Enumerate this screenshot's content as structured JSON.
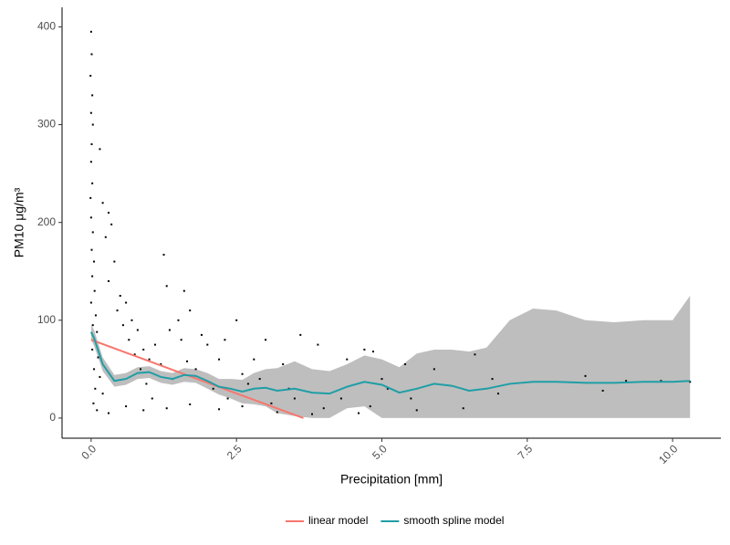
{
  "chart_data": {
    "type": "scatter",
    "x_label": "Precipitation [mm]",
    "y_label": "PM10 μg/m³",
    "xlim": [
      -0.5,
      10.83
    ],
    "ylim": [
      -20.6,
      420
    ],
    "xticks": [
      {
        "value": 0,
        "label": "0.0"
      },
      2.5,
      {
        "value": 5,
        "label": "5.0"
      },
      7.5,
      {
        "value": 10,
        "label": "10.0"
      }
    ],
    "yticks": [
      0,
      100,
      200,
      300,
      400
    ],
    "grid": false,
    "legend": "bottom",
    "points": {
      "color": "#000000",
      "x": [
        0,
        0.01,
        -0.01,
        0.02,
        0,
        0.03,
        0.01,
        0,
        0.02,
        -0.01,
        0,
        0.03,
        0.01,
        0.05,
        0.02,
        0.06,
        0,
        0.08,
        0.03,
        0.1,
        0.02,
        0.12,
        0.05,
        0.15,
        0.07,
        0.2,
        0.04,
        0.1,
        0.15,
        0.2,
        0.3,
        0.35,
        0.25,
        0.4,
        0.3,
        0.5,
        0.45,
        0.6,
        0.55,
        0.7,
        0.65,
        0.8,
        0.75,
        0.9,
        0.85,
        1.0,
        0.95,
        1.1,
        1.05,
        1.2,
        1.25,
        1.3,
        1.35,
        1.4,
        1.5,
        1.55,
        1.6,
        1.7,
        1.65,
        1.8,
        1.9,
        2.0,
        2.1,
        2.2,
        2.3,
        2.35,
        2.5,
        2.6,
        2.7,
        2.8,
        2.9,
        3.0,
        3.1,
        3.3,
        3.4,
        3.5,
        3.6,
        3.9,
        4.0,
        4.3,
        4.4,
        4.7,
        4.8,
        4.85,
        5.0,
        5.1,
        5.4,
        5.5,
        5.6,
        5.9,
        6.4,
        6.6,
        6.9,
        7.0,
        8.5,
        8.8,
        9.2,
        9.8,
        10.3,
        0.3,
        0.6,
        0.9,
        1.3,
        1.7,
        2.2,
        2.6,
        3.2,
        3.8,
        4.6
      ],
      "y": [
        395,
        372,
        350,
        330,
        312,
        300,
        280,
        262,
        240,
        225,
        205,
        190,
        172,
        160,
        145,
        130,
        118,
        105,
        95,
        88,
        70,
        62,
        50,
        42,
        30,
        25,
        15,
        8,
        275,
        220,
        210,
        198,
        185,
        160,
        140,
        125,
        110,
        118,
        95,
        100,
        80,
        90,
        65,
        70,
        50,
        60,
        35,
        75,
        20,
        55,
        167,
        135,
        90,
        40,
        100,
        80,
        130,
        110,
        58,
        50,
        85,
        75,
        30,
        60,
        80,
        20,
        100,
        45,
        35,
        60,
        40,
        80,
        15,
        55,
        30,
        20,
        85,
        75,
        10,
        20,
        60,
        70,
        12,
        68,
        40,
        30,
        55,
        20,
        8,
        50,
        10,
        65,
        40,
        25,
        43,
        28,
        38,
        38,
        37,
        5,
        12,
        8,
        10,
        14,
        9,
        12,
        6,
        4,
        5
      ]
    },
    "lines": [
      {
        "name": "linear model",
        "color": "#F8766D",
        "x": [
          0,
          3.65
        ],
        "y": [
          80,
          0
        ]
      },
      {
        "name": "smooth spline model",
        "color": "#1f9ea6",
        "band_color": "#bebebe",
        "x": [
          0,
          0.05,
          0.2,
          0.4,
          0.6,
          0.8,
          1.0,
          1.2,
          1.4,
          1.6,
          1.8,
          2.0,
          2.2,
          2.4,
          2.6,
          2.8,
          3.0,
          3.2,
          3.5,
          3.8,
          4.1,
          4.4,
          4.7,
          5.0,
          5.3,
          5.6,
          5.9,
          6.2,
          6.5,
          6.8,
          7.2,
          7.6,
          8.0,
          8.5,
          9.0,
          9.5,
          10.0,
          10.3
        ],
        "y": [
          88,
          82,
          55,
          38,
          40,
          46,
          47,
          42,
          40,
          44,
          43,
          38,
          32,
          30,
          27,
          30,
          31,
          28,
          30,
          26,
          25,
          32,
          37,
          34,
          26,
          30,
          35,
          33,
          28,
          30,
          35,
          37,
          37,
          36,
          36,
          37,
          37,
          38
        ],
        "lower": [
          80,
          74,
          48,
          32,
          34,
          40,
          41,
          36,
          34,
          37,
          36,
          30,
          24,
          20,
          15,
          14,
          12,
          5,
          2,
          0,
          0,
          10,
          12,
          0,
          0,
          0,
          0,
          0,
          0,
          0,
          0,
          0,
          0,
          0,
          0,
          0,
          0,
          0
        ],
        "upper": [
          96,
          90,
          62,
          44,
          46,
          52,
          53,
          48,
          46,
          51,
          50,
          46,
          40,
          40,
          39,
          46,
          50,
          51,
          58,
          50,
          48,
          55,
          64,
          60,
          52,
          66,
          70,
          70,
          68,
          72,
          100,
          112,
          110,
          100,
          98,
          100,
          100,
          125
        ]
      }
    ]
  }
}
